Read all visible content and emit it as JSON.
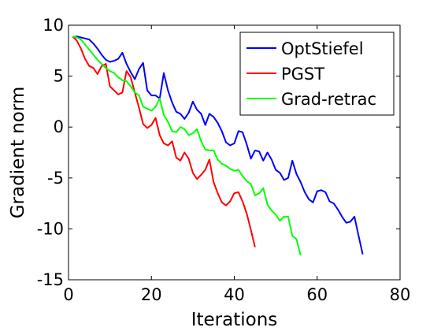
{
  "chart_data": {
    "type": "line",
    "xlabel": "Iterations",
    "ylabel": "Gradient norm",
    "xlim": [
      0,
      80
    ],
    "ylim": [
      -15,
      10
    ],
    "x_ticks": [
      0,
      20,
      40,
      60,
      80
    ],
    "y_ticks": [
      -15,
      -10,
      -5,
      0,
      5,
      10
    ],
    "grid": false,
    "legend_position": "top-right",
    "series": [
      {
        "name": "OptStiefel",
        "color": "#0000ff",
        "x": [
          1,
          2,
          3,
          4,
          5,
          6,
          7,
          8,
          9,
          10,
          11,
          12,
          13,
          14,
          15,
          16,
          17,
          18,
          19,
          20,
          21,
          22,
          23,
          24,
          25,
          26,
          27,
          28,
          29,
          30,
          31,
          32,
          33,
          34,
          35,
          36,
          37,
          38,
          39,
          40,
          41,
          42,
          43,
          44,
          45,
          46,
          47,
          48,
          49,
          50,
          51,
          52,
          53,
          54,
          55,
          56,
          57,
          58,
          59,
          60,
          61,
          62,
          63,
          64,
          65,
          66,
          67,
          68,
          69,
          70,
          71
        ],
        "y": [
          8.8,
          8.9,
          8.8,
          8.7,
          8.6,
          8.2,
          7.7,
          7.1,
          6.6,
          6.4,
          6.5,
          6.7,
          7.3,
          6.2,
          5.4,
          4.7,
          5.7,
          6.3,
          3.6,
          3.1,
          3.1,
          2.8,
          5.3,
          3.6,
          2.4,
          1.5,
          1.3,
          0.8,
          1.4,
          2.5,
          1.7,
          1.3,
          0.2,
          1.3,
          1.0,
          0.4,
          -0.4,
          -1.5,
          -1.8,
          -1.6,
          -0.4,
          -0.5,
          -1.7,
          -3.1,
          -2.3,
          -2.4,
          -3.3,
          -2.5,
          -3.2,
          -4.2,
          -4.5,
          -5.2,
          -5.0,
          -3.3,
          -4.6,
          -5.4,
          -6.4,
          -7.1,
          -7.4,
          -6.3,
          -6.2,
          -6.4,
          -7.3,
          -7.5,
          -8.1,
          -8.8,
          -9.4,
          -9.3,
          -8.8,
          -10.7,
          -12.5
        ]
      },
      {
        "name": "PGST",
        "color": "#ff0000",
        "x": [
          1,
          2,
          3,
          4,
          5,
          6,
          7,
          8,
          9,
          10,
          11,
          12,
          13,
          14,
          15,
          16,
          17,
          18,
          19,
          20,
          21,
          22,
          23,
          24,
          25,
          26,
          27,
          28,
          29,
          30,
          31,
          32,
          33,
          34,
          35,
          36,
          37,
          38,
          39,
          40,
          41,
          42,
          43,
          44,
          45
        ],
        "y": [
          8.9,
          8.5,
          7.7,
          6.7,
          6.0,
          5.8,
          5.2,
          6.0,
          6.2,
          4.0,
          3.6,
          3.2,
          3.4,
          5.5,
          4.9,
          3.4,
          1.9,
          0.3,
          -0.1,
          0.2,
          0.9,
          -0.8,
          -1.6,
          -1.8,
          -1.4,
          -3.0,
          -3.3,
          -2.5,
          -3.1,
          -4.5,
          -5.1,
          -4.7,
          -4.2,
          -3.2,
          -5.4,
          -6.5,
          -7.4,
          -7.7,
          -7.3,
          -6.5,
          -6.4,
          -7.3,
          -8.5,
          -10.1,
          -11.8
        ]
      },
      {
        "name": "Grad-retrac",
        "color": "#00ff00",
        "x": [
          1,
          2,
          3,
          4,
          5,
          6,
          7,
          8,
          9,
          10,
          11,
          12,
          13,
          14,
          15,
          16,
          17,
          18,
          19,
          20,
          21,
          22,
          23,
          24,
          25,
          26,
          27,
          28,
          29,
          30,
          31,
          32,
          33,
          34,
          35,
          36,
          37,
          38,
          39,
          40,
          41,
          42,
          43,
          44,
          45,
          46,
          47,
          48,
          49,
          50,
          51,
          52,
          53,
          54,
          55,
          56
        ],
        "y": [
          8.9,
          8.8,
          8.6,
          8.1,
          7.6,
          7.1,
          6.6,
          6.2,
          5.8,
          5.5,
          5.3,
          4.9,
          4.6,
          4.5,
          4.0,
          3.4,
          3.1,
          2.0,
          1.8,
          1.6,
          2.0,
          2.8,
          1.2,
          0.5,
          -0.4,
          -0.5,
          0.0,
          -0.2,
          -0.8,
          -0.6,
          -0.2,
          -1.4,
          -2.2,
          -2.3,
          -2.3,
          -3.2,
          -3.6,
          -3.8,
          -4.1,
          -4.3,
          -4.2,
          -4.8,
          -5.3,
          -5.6,
          -6.7,
          -6.5,
          -6.0,
          -7.6,
          -8.2,
          -8.6,
          -9.2,
          -8.8,
          -8.8,
          -10.7,
          -11.0,
          -12.6
        ]
      }
    ]
  }
}
